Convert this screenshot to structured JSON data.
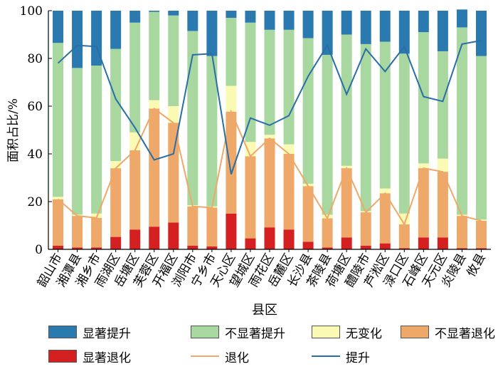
{
  "chart_data": {
    "type": "bar",
    "stacked": true,
    "xlabel": "县区",
    "ylabel": "面积占比/%",
    "ylim": [
      0,
      100
    ],
    "yticks": [
      0,
      20,
      40,
      60,
      80,
      100
    ],
    "categories": [
      "韶山市",
      "湘潭县",
      "湘乡市",
      "雨湖区",
      "岳塘区",
      "芙蓉区",
      "开福区",
      "浏阳市",
      "宁乡市",
      "天心区",
      "望城区",
      "雨花区",
      "岳麓区",
      "长沙县",
      "茶陵县",
      "荷塘区",
      "醴陵市",
      "芦淞区",
      "渌口区",
      "石峰区",
      "天元区",
      "炎陵县",
      "攸县"
    ],
    "series": [
      {
        "name": "显著退化",
        "kind": "bar",
        "color": "#d42020",
        "values": [
          1.5,
          0.8,
          0.8,
          5.2,
          8.3,
          9.5,
          11.2,
          1.5,
          1.2,
          15.0,
          4.6,
          9.2,
          8.3,
          3.2,
          0.8,
          5.0,
          1.5,
          2.5,
          0.5,
          5.0,
          5.0,
          0.5,
          0.5
        ]
      },
      {
        "name": "不显著退化",
        "kind": "bar",
        "color": "#eda86a",
        "values": [
          19.5,
          13.2,
          12.4,
          28.8,
          33.2,
          49.5,
          41.8,
          16.5,
          16.3,
          42.7,
          34.4,
          37.3,
          31.7,
          23.3,
          12.2,
          29.0,
          14.0,
          21.0,
          10.0,
          29.0,
          27.5,
          13.5,
          11.5
        ]
      },
      {
        "name": "无变化",
        "kind": "bar",
        "color": "#fafab4",
        "values": [
          1.0,
          0.5,
          1.8,
          3.0,
          7.5,
          3.5,
          7.0,
          0.5,
          0.5,
          10.8,
          6.0,
          1.5,
          4.0,
          1.0,
          1.5,
          1.0,
          0.5,
          2.0,
          4.5,
          2.0,
          5.5,
          0.5,
          0.5
        ]
      },
      {
        "name": "不显著提升",
        "kind": "bar",
        "color": "#a8d8a0",
        "values": [
          64.5,
          61.5,
          62.0,
          47.0,
          46.0,
          37.0,
          38.0,
          73.0,
          63.0,
          28.5,
          50.0,
          44.0,
          48.0,
          61.0,
          67.0,
          55.0,
          70.0,
          61.5,
          67.0,
          55.0,
          45.0,
          78.5,
          68.5
        ]
      },
      {
        "name": "显著提升",
        "kind": "bar",
        "color": "#2a7ab0",
        "values": [
          13.5,
          24.0,
          23.0,
          16.0,
          5.0,
          0.5,
          2.0,
          8.5,
          19.0,
          3.0,
          5.0,
          8.0,
          8.0,
          11.5,
          18.5,
          10.0,
          14.0,
          13.0,
          18.0,
          9.0,
          17.0,
          7.5,
          19.0
        ]
      },
      {
        "name": "退化",
        "kind": "line",
        "color": "#eda86a",
        "values": [
          21.0,
          14.0,
          13.2,
          34.0,
          41.5,
          59.0,
          53.0,
          18.0,
          17.5,
          57.7,
          39.0,
          46.5,
          40.0,
          26.5,
          13.0,
          34.0,
          15.5,
          23.5,
          10.5,
          34.0,
          32.5,
          14.0,
          12.0
        ]
      },
      {
        "name": "提升",
        "kind": "line",
        "color": "#2a6ea8",
        "values": [
          78.0,
          85.5,
          85.0,
          63.0,
          51.0,
          37.5,
          40.0,
          81.5,
          82.0,
          31.5,
          55.0,
          52.0,
          56.0,
          72.5,
          85.5,
          65.0,
          84.0,
          74.5,
          85.0,
          64.0,
          62.0,
          86.0,
          87.5
        ]
      }
    ],
    "legend": {
      "placement": "bottom",
      "items": [
        {
          "label": "显著提升",
          "kind": "bar",
          "color": "#2a7ab0"
        },
        {
          "label": "不显著提升",
          "kind": "bar",
          "color": "#a8d8a0"
        },
        {
          "label": "无变化",
          "kind": "bar",
          "color": "#fafab4"
        },
        {
          "label": "不显著退化",
          "kind": "bar",
          "color": "#eda86a"
        },
        {
          "label": "显著退化",
          "kind": "bar",
          "color": "#d42020"
        },
        {
          "label": "退化",
          "kind": "line",
          "color": "#eda86a"
        },
        {
          "label": "提升",
          "kind": "line",
          "color": "#2a6ea8"
        }
      ]
    }
  }
}
